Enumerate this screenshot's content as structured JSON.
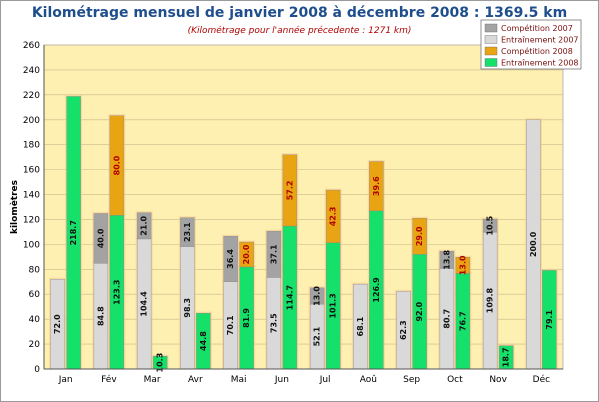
{
  "title": "Kilométrage mensuel de janvier 2008 à décembre 2008 : 1369.5 km",
  "subtitle": "(Kilométrage pour l'année précedente : 1271 km)",
  "colors": {
    "plot_bg": "#fdf0b0",
    "competition_2007": "#a3a3a3",
    "entrainement_2007": "#d9d9d9",
    "competition_2008": "#e8a412",
    "entrainement_2008": "#15e06a"
  },
  "chart_data": {
    "type": "bar",
    "title": "Kilométrage mensuel de janvier 2008 à décembre 2008 : 1369.5 km",
    "subtitle": "(Kilométrage pour l'année précedente : 1271 km)",
    "xlabel": "",
    "ylabel": "kilomètres",
    "ylim": [
      0,
      260
    ],
    "yticks": [
      0,
      20,
      40,
      60,
      80,
      100,
      120,
      140,
      160,
      180,
      200,
      220,
      240,
      260
    ],
    "grid": true,
    "legend_position": "top-right",
    "categories": [
      "Jan",
      "Fév",
      "Mar",
      "Avr",
      "Mai",
      "Jun",
      "Jul",
      "Aoû",
      "Sep",
      "Oct",
      "Nov",
      "Déc"
    ],
    "stacks": [
      {
        "name": "2007",
        "series": [
          {
            "name": "Entraînement 2007",
            "values": [
              72.0,
              84.8,
              104.4,
              98.3,
              70.1,
              73.5,
              52.1,
              68.1,
              62.3,
              80.7,
              109.8,
              200.0
            ]
          },
          {
            "name": "Compétition 2007",
            "values": [
              0,
              40.0,
              21.0,
              23.1,
              36.4,
              37.1,
              13.0,
              0,
              0,
              13.8,
              10.5,
              0
            ]
          }
        ]
      },
      {
        "name": "2008",
        "series": [
          {
            "name": "Entraînement 2008",
            "values": [
              218.7,
              123.3,
              10.3,
              44.8,
              81.9,
              114.7,
              101.3,
              126.9,
              92.0,
              76.7,
              18.7,
              79.1
            ]
          },
          {
            "name": "Compétition 2008",
            "values": [
              0,
              80.0,
              0,
              0,
              20.0,
              57.2,
              42.3,
              39.6,
              29.0,
              13.0,
              0,
              0
            ]
          }
        ]
      }
    ],
    "legend": [
      "Compétition 2007",
      "Entraînement 2007",
      "Compétition 2008",
      "Entraînement 2008"
    ]
  }
}
